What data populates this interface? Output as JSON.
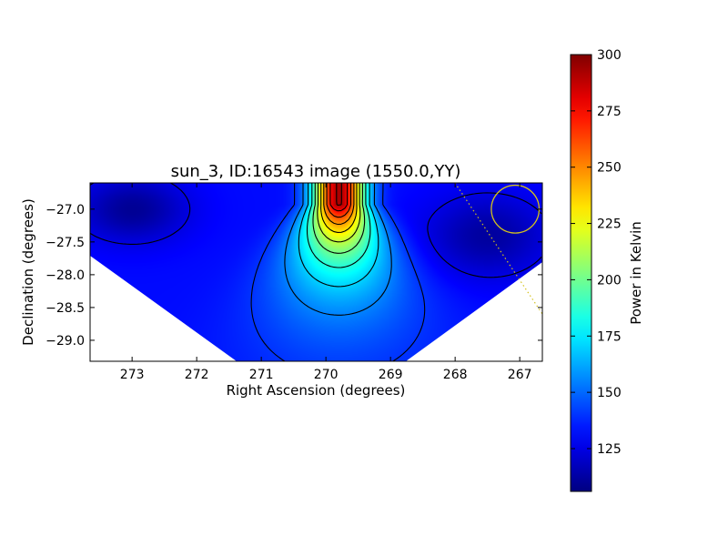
{
  "chart_data": {
    "type": "heatmap",
    "title": "sun_3, ID:16543 image (1550.0,YY)",
    "xlabel": "Right Ascension (degrees)",
    "ylabel": "Declination (degrees)",
    "xlim": [
      273.65,
      266.65
    ],
    "ylim": [
      -29.32,
      -26.6
    ],
    "x_ticks": [
      "273",
      "272",
      "271",
      "270",
      "269",
      "268",
      "267"
    ],
    "x_tick_values": [
      273,
      272,
      271,
      270,
      269,
      268,
      267
    ],
    "y_ticks": [
      "−27.0",
      "−27.5",
      "−28.0",
      "−28.5",
      "−29.0"
    ],
    "y_tick_values": [
      -27.0,
      -27.5,
      -28.0,
      -28.5,
      -29.0
    ],
    "colorbar": {
      "label": "Power in Kelvin",
      "min": 106,
      "max": 300,
      "ticks": [
        "125",
        "150",
        "175",
        "200",
        "225",
        "250",
        "275",
        "300"
      ],
      "tick_values": [
        125,
        150,
        175,
        200,
        225,
        250,
        275,
        300
      ],
      "colormap": "jet"
    },
    "source_peak": {
      "ra": 269.8,
      "dec": -26.93,
      "value": 300
    },
    "beam_circle": {
      "ra": 267.07,
      "dec": -27.0,
      "radius_deg": 0.37,
      "color": "#d4c21c"
    },
    "grid": false
  }
}
